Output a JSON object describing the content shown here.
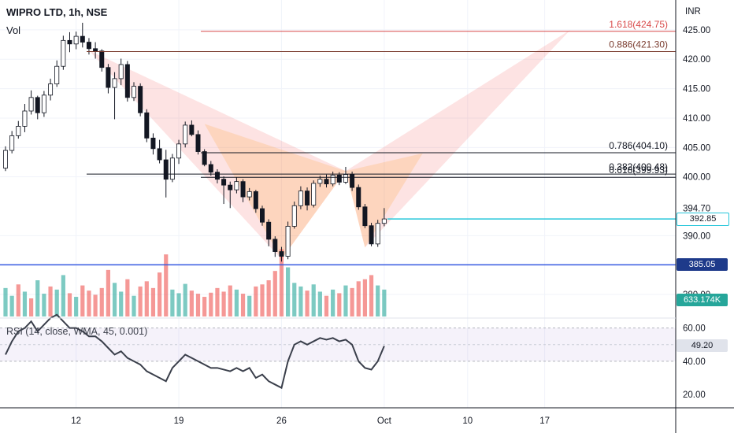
{
  "header": {
    "title": "WIPRO LTD, 1h, NSE",
    "volume_label": "Vol"
  },
  "chart_data": {
    "type": "candlestick",
    "price_axis": {
      "currency": "INR",
      "range": [
        376,
        429
      ],
      "ticks": [
        {
          "v": 425,
          "l": "425.00"
        },
        {
          "v": 420,
          "l": "420.00"
        },
        {
          "v": 415,
          "l": "415.00"
        },
        {
          "v": 410,
          "l": "410.00"
        },
        {
          "v": 405,
          "l": "405.00"
        },
        {
          "v": 400,
          "l": "400.00"
        },
        {
          "v": 390,
          "l": "390.00"
        },
        {
          "v": 380,
          "l": "380.00"
        }
      ]
    },
    "time_axis": {
      "ticks": [
        {
          "label": "12",
          "i": 11
        },
        {
          "label": "19",
          "i": 27
        },
        {
          "label": "26",
          "i": 43
        },
        {
          "label": "Oct",
          "i": 59
        },
        {
          "label": "10",
          "i": 72
        },
        {
          "label": "17",
          "i": 84
        }
      ]
    },
    "fib_levels": [
      {
        "label": "1.618(424.75)",
        "value": 424.75,
        "color": "#d84a4a"
      },
      {
        "label": "0.886(421.30)",
        "value": 421.3,
        "color": "#7a3b2e"
      },
      {
        "label": "0.786(404.10)",
        "value": 404.1,
        "color": "#131722"
      },
      {
        "label": "0.382(400.48)",
        "value": 400.48,
        "color": "#131722"
      },
      {
        "label": "0.618(399.93)",
        "value": 399.93,
        "color": "#131722"
      }
    ],
    "horizontal_lines": [
      {
        "value": 385.05,
        "color": "#3559e0"
      },
      {
        "value": 392.85,
        "color": "#26c6da"
      }
    ],
    "price_badges": {
      "high": "394.70",
      "last": "392.85",
      "level": "385.05"
    },
    "volume_badge": "633.174K",
    "harmonic_pattern": {
      "outer": [
        [
          13,
          421.5
        ],
        [
          43,
          386
        ],
        [
          53,
          401
        ],
        [
          56,
          388
        ],
        [
          88,
          425
        ]
      ],
      "inner": [
        [
          31,
          409
        ],
        [
          43,
          386
        ],
        [
          53,
          401
        ],
        [
          56,
          388
        ],
        [
          65,
          404
        ]
      ]
    },
    "candles": [
      [
        401.5,
        405.2,
        401,
        404.5
      ],
      [
        404.5,
        407.8,
        404,
        407
      ],
      [
        407,
        409.5,
        406.5,
        408.6
      ],
      [
        408.6,
        412.4,
        407.6,
        411.2
      ],
      [
        411.2,
        414.7,
        410.6,
        413.5
      ],
      [
        413.5,
        413.8,
        409.8,
        410.9
      ],
      [
        410.9,
        414.6,
        410.2,
        413.9
      ],
      [
        413.9,
        416.7,
        413,
        415.8
      ],
      [
        415.8,
        419.8,
        415.3,
        418.8
      ],
      [
        418.8,
        424,
        418.2,
        423.2
      ],
      [
        423.2,
        424.6,
        421.2,
        422.6
      ],
      [
        422.6,
        424.7,
        421.7,
        423.9
      ],
      [
        423.9,
        426.2,
        422,
        422.9
      ],
      [
        422.9,
        423.6,
        420.8,
        421.8
      ],
      [
        421.8,
        422.9,
        420.1,
        421.4
      ],
      [
        421.4,
        421.7,
        417.9,
        418.6
      ],
      [
        418.6,
        419.2,
        414.2,
        415.2
      ],
      [
        415.2,
        417.8,
        409.8,
        416.7
      ],
      [
        416.7,
        420.1,
        415.6,
        419.1
      ],
      [
        419.1,
        419.7,
        412.8,
        413.5
      ],
      [
        413.5,
        416.1,
        412.9,
        415.4
      ],
      [
        415.4,
        415.9,
        410.3,
        410.9
      ],
      [
        410.9,
        411.5,
        405.9,
        406.6
      ],
      [
        406.6,
        407.4,
        403.8,
        404.8
      ],
      [
        404.8,
        406.3,
        402.3,
        402.9
      ],
      [
        402.9,
        404.6,
        396.5,
        399.6
      ],
      [
        399.6,
        403.9,
        399.1,
        403.2
      ],
      [
        403.2,
        406.3,
        402.2,
        405.6
      ],
      [
        405.6,
        409.4,
        405,
        408.8
      ],
      [
        408.8,
        409.6,
        406.9,
        407.2
      ],
      [
        407.2,
        407.9,
        403.8,
        404.3
      ],
      [
        404.3,
        404.7,
        401.8,
        402.1
      ],
      [
        402.1,
        402.7,
        400.2,
        400.8
      ],
      [
        400.8,
        401.3,
        398.9,
        399.6
      ],
      [
        399.6,
        400.1,
        395.4,
        398.6
      ],
      [
        398.6,
        399.2,
        394.7,
        397.8
      ],
      [
        397.8,
        399.9,
        397.2,
        399.2
      ],
      [
        399.2,
        399.6,
        395.7,
        396.6
      ],
      [
        396.6,
        398.1,
        396,
        397.5
      ],
      [
        397.5,
        397.8,
        393.9,
        394.6
      ],
      [
        394.6,
        395.1,
        391.7,
        392.3
      ],
      [
        392.3,
        392.8,
        388.2,
        389.4
      ],
      [
        389.4,
        389.9,
        386.4,
        387.3
      ],
      [
        387.3,
        388.1,
        385.6,
        386.5
      ],
      [
        386.5,
        392.4,
        386,
        391.6
      ],
      [
        391.6,
        395.8,
        391.2,
        395.1
      ],
      [
        395.1,
        398.4,
        394.5,
        397.6
      ],
      [
        397.6,
        398.2,
        394.3,
        395.2
      ],
      [
        395.2,
        399.4,
        394.8,
        398.9
      ],
      [
        398.9,
        400.2,
        398.3,
        399.6
      ],
      [
        399.6,
        400.4,
        398.2,
        398.8
      ],
      [
        398.8,
        400.9,
        398.4,
        400.3
      ],
      [
        400.3,
        400.8,
        398.6,
        399.1
      ],
      [
        399.1,
        401.7,
        398.8,
        400.4
      ],
      [
        400.4,
        400.9,
        397.6,
        398.2
      ],
      [
        398.2,
        398.7,
        394.4,
        394.9
      ],
      [
        394.9,
        395.4,
        391.3,
        391.7
      ],
      [
        391.7,
        392.2,
        388.2,
        388.6
      ],
      [
        388.6,
        392.7,
        388.1,
        392.1
      ],
      [
        392.1,
        394.7,
        391.6,
        392.85
      ]
    ],
    "volume": [
      [
        55,
        1
      ],
      [
        40,
        1
      ],
      [
        62,
        0
      ],
      [
        48,
        1
      ],
      [
        35,
        0
      ],
      [
        70,
        1
      ],
      [
        44,
        1
      ],
      [
        58,
        0
      ],
      [
        52,
        1
      ],
      [
        80,
        1
      ],
      [
        45,
        0
      ],
      [
        38,
        1
      ],
      [
        60,
        0
      ],
      [
        50,
        0
      ],
      [
        42,
        0
      ],
      [
        55,
        0
      ],
      [
        90,
        0
      ],
      [
        65,
        1
      ],
      [
        48,
        1
      ],
      [
        72,
        0
      ],
      [
        40,
        1
      ],
      [
        58,
        0
      ],
      [
        68,
        0
      ],
      [
        55,
        0
      ],
      [
        85,
        0
      ],
      [
        120,
        0
      ],
      [
        52,
        1
      ],
      [
        45,
        1
      ],
      [
        63,
        1
      ],
      [
        50,
        0
      ],
      [
        44,
        0
      ],
      [
        38,
        0
      ],
      [
        46,
        0
      ],
      [
        55,
        0
      ],
      [
        48,
        0
      ],
      [
        60,
        0
      ],
      [
        52,
        1
      ],
      [
        44,
        0
      ],
      [
        40,
        1
      ],
      [
        58,
        0
      ],
      [
        62,
        0
      ],
      [
        70,
        0
      ],
      [
        88,
        0
      ],
      [
        130,
        0
      ],
      [
        95,
        1
      ],
      [
        65,
        1
      ],
      [
        58,
        1
      ],
      [
        50,
        0
      ],
      [
        62,
        1
      ],
      [
        48,
        1
      ],
      [
        40,
        0
      ],
      [
        52,
        1
      ],
      [
        45,
        0
      ],
      [
        60,
        1
      ],
      [
        55,
        0
      ],
      [
        68,
        0
      ],
      [
        72,
        0
      ],
      [
        80,
        0
      ],
      [
        60,
        1
      ],
      [
        52,
        1
      ]
    ],
    "rsi": {
      "label": "RSI (14, close, WMA, 45, 0.001)",
      "range": [
        12,
        66
      ],
      "upper": 60,
      "lower": 40,
      "value_badge": "49.20",
      "ticks": [
        {
          "v": 60,
          "l": "60.00"
        },
        {
          "v": 40,
          "l": "40.00"
        },
        {
          "v": 20,
          "l": "20.00"
        }
      ],
      "values": [
        44,
        52,
        58,
        60,
        64,
        58,
        62,
        66,
        68,
        64,
        60,
        60,
        58,
        55,
        55,
        52,
        48,
        44,
        46,
        42,
        40,
        38,
        34,
        32,
        30,
        28,
        36,
        40,
        44,
        42,
        40,
        38,
        36,
        36,
        35,
        34,
        36,
        34,
        36,
        30,
        32,
        28,
        26,
        24,
        40,
        50,
        52,
        50,
        52,
        54,
        53,
        54,
        52,
        53,
        50,
        40,
        36,
        35,
        40,
        49.2
      ]
    }
  }
}
